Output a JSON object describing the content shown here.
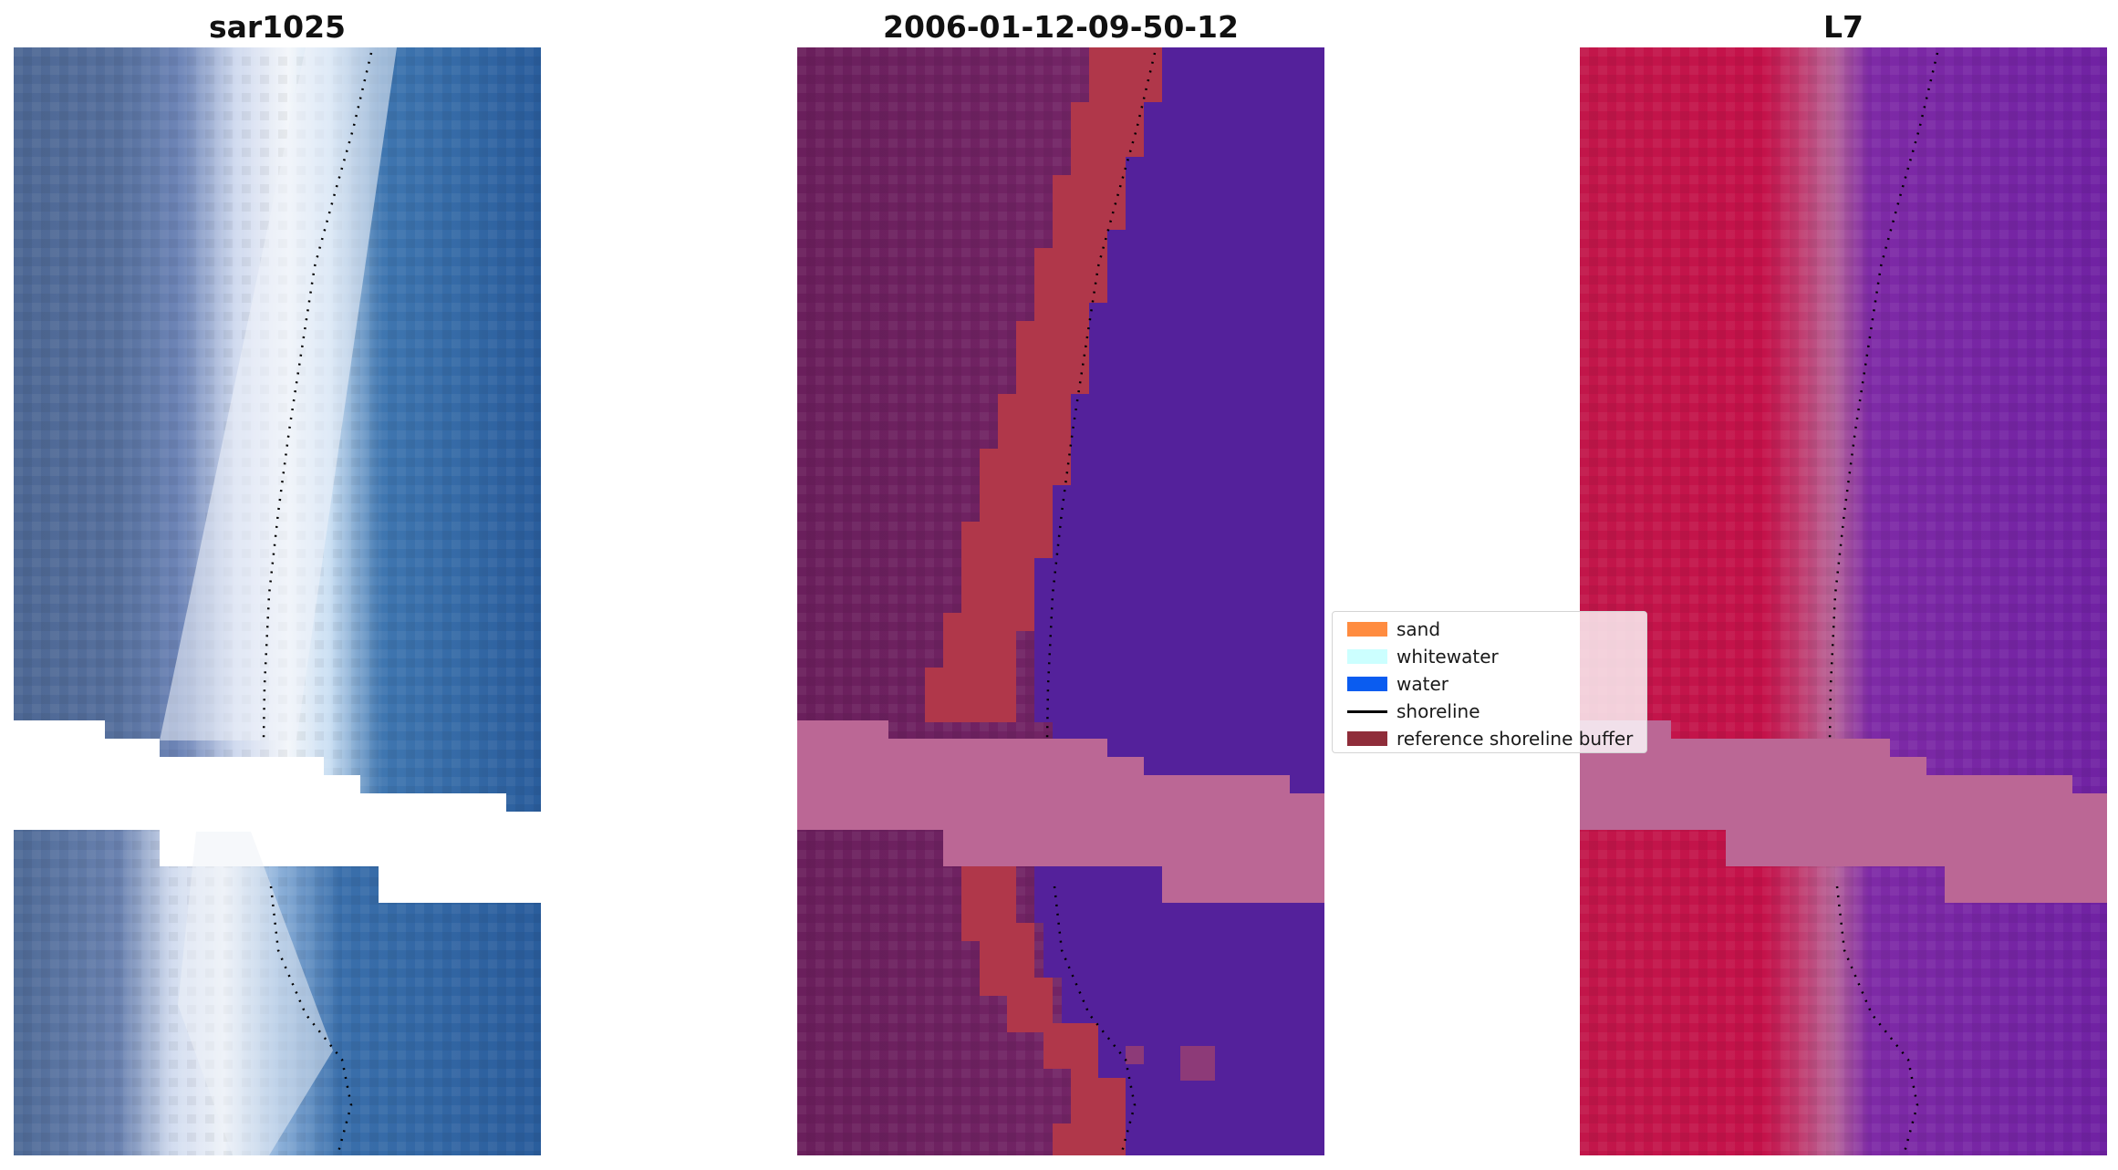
{
  "panels": {
    "left_title": "sar1025",
    "middle_title": "2006-01-12-09-50-12",
    "right_title": "L7"
  },
  "legend": {
    "items": [
      {
        "label": "sand",
        "color": "#ff8c40",
        "kind": "patch"
      },
      {
        "label": "whitewater",
        "color": "#ccffff",
        "kind": "patch"
      },
      {
        "label": "water",
        "color": "#0a5cf0",
        "kind": "patch"
      },
      {
        "label": "shoreline",
        "color": "#000000",
        "kind": "line"
      },
      {
        "label": "reference shoreline buffer",
        "color": "#8f2d3a",
        "kind": "patch"
      }
    ]
  },
  "colors": {
    "rgb_water": "#2a5d9c",
    "rgb_land": "#4c6897",
    "rgb_whitewater": "#eef2f8",
    "class_land": "#6e2160",
    "class_buffer": "#b23848",
    "class_water": "#54219b",
    "class_nodata_band": "#bb6795",
    "fc_land": "#c2154a",
    "fc_water": "#7022a3",
    "fc_nodata_band": "#bb6795"
  }
}
